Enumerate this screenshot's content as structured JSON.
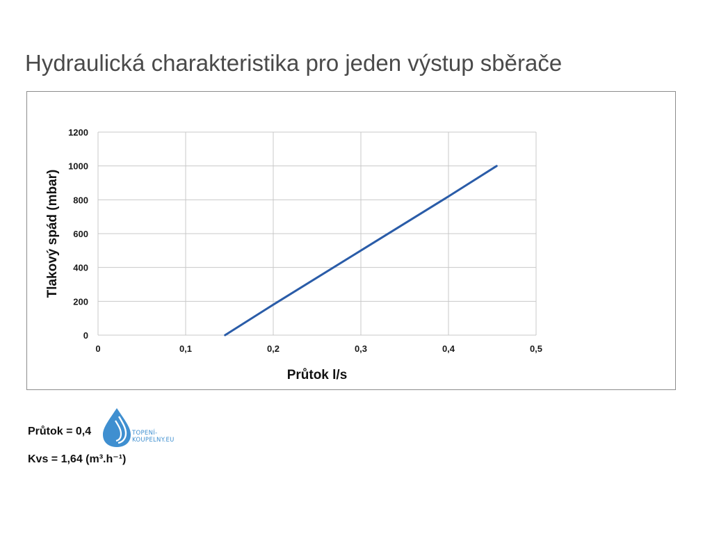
{
  "page": {
    "title": "Hydraulická charakteristika pro jeden výstup sběrače"
  },
  "chart_data": {
    "type": "line",
    "title": "",
    "xlabel": "Průtok l/s",
    "ylabel": "Tlakový spád (mbar)",
    "xlim": [
      0,
      0.5
    ],
    "ylim": [
      0,
      1200
    ],
    "x_ticks": [
      "0",
      "0,1",
      "0,2",
      "0,3",
      "0,4",
      "0,5"
    ],
    "y_ticks": [
      "0",
      "200",
      "400",
      "600",
      "800",
      "1000",
      "1200"
    ],
    "grid": true,
    "legend": "none",
    "line_color": "#2a5ca8",
    "series": [
      {
        "x": [
          0.145,
          0.2,
          0.3,
          0.4,
          0.455
        ],
        "y": [
          0,
          180,
          500,
          820,
          1000
        ]
      }
    ]
  },
  "notes": {
    "flow": "Průtok = 0,4",
    "kvs": "Kvs = 1,64 (m³.h⁻¹)"
  },
  "logo": {
    "line1": "TOPENÍ-",
    "line2": "KOUPELNY.EU",
    "icon": "water-drop-icon",
    "color": "#3f8fd0"
  }
}
